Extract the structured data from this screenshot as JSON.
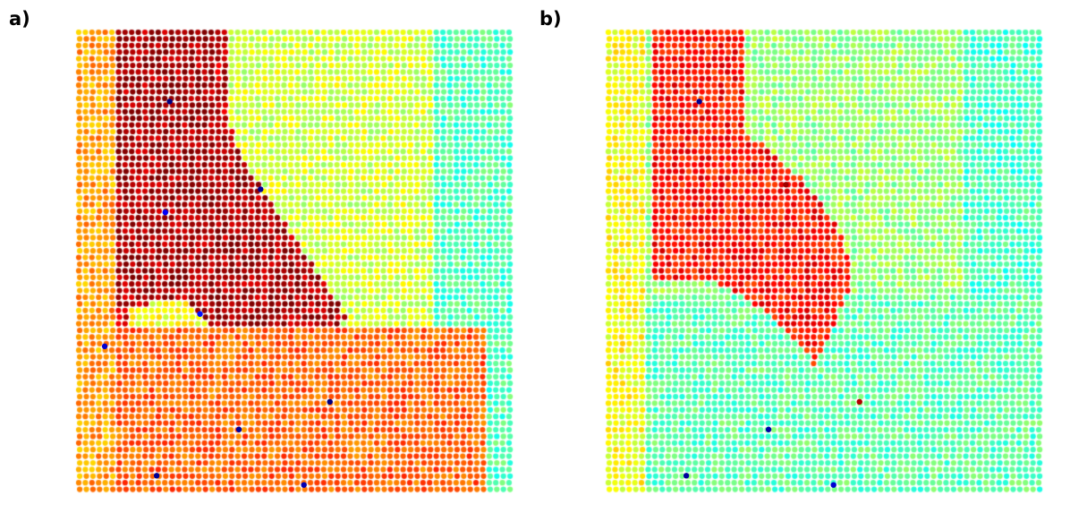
{
  "panels": [
    {
      "label": "a)",
      "map": "a"
    },
    {
      "label": "b)",
      "map": "b"
    }
  ],
  "chart_data": [
    {
      "type": "scatter",
      "panel_label": "a)",
      "description_of_encoding": "",
      "grid": false,
      "axes_visible": false,
      "colormap": "jet",
      "regions": {
        "left_band_value": 0.72,
        "upper_triangle_value": 0.93,
        "mid_band_value": 0.96,
        "light_pocket_value": 0.62,
        "lower_block_value": 0.78,
        "upper_right_value": 0.58,
        "right_edge_value": 0.45
      },
      "outliers": [
        {
          "u": 0.21,
          "v": 0.15,
          "value": 0.0
        },
        {
          "u": 0.42,
          "v": 0.34,
          "value": 0.02
        },
        {
          "u": 0.2,
          "v": 0.39,
          "value": 0.12
        },
        {
          "u": 0.28,
          "v": 0.61,
          "value": 0.14
        },
        {
          "u": 0.06,
          "v": 0.68,
          "value": 0.08
        },
        {
          "u": 0.58,
          "v": 0.8,
          "value": 0.0
        },
        {
          "u": 0.37,
          "v": 0.86,
          "value": 0.03
        },
        {
          "u": 0.18,
          "v": 0.96,
          "value": 0.02
        },
        {
          "u": 0.52,
          "v": 0.98,
          "value": 0.05
        }
      ]
    },
    {
      "type": "scatter",
      "panel_label": "b)",
      "grid": false,
      "axes_visible": false,
      "colormap": "jet",
      "regions": {
        "left_band_value": 0.62,
        "red_region_value": 0.86,
        "upper_right_value": 0.52,
        "lower_field_value": 0.46,
        "right_edge_value": 0.44
      },
      "outliers": [
        {
          "u": 0.21,
          "v": 0.15,
          "value": 0.02
        },
        {
          "u": 0.41,
          "v": 0.33,
          "value": 0.97
        },
        {
          "u": 0.58,
          "v": 0.8,
          "value": 0.95
        },
        {
          "u": 0.37,
          "v": 0.86,
          "value": 0.04
        },
        {
          "u": 0.18,
          "v": 0.96,
          "value": 0.03
        },
        {
          "u": 0.52,
          "v": 0.98,
          "value": 0.08
        }
      ]
    }
  ]
}
